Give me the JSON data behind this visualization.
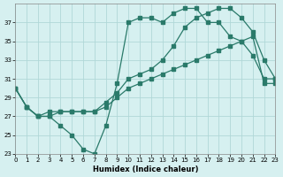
{
  "xlabel": "Humidex (Indice chaleur)",
  "ylabel": "",
  "background_color": "#d6f0f0",
  "grid_color": "#b0d8d8",
  "line_color": "#2a7a6a",
  "xlim": [
    0,
    23
  ],
  "ylim": [
    23,
    39
  ],
  "xticks": [
    0,
    1,
    2,
    3,
    4,
    5,
    6,
    7,
    8,
    9,
    10,
    11,
    12,
    13,
    14,
    15,
    16,
    17,
    18,
    19,
    20,
    21,
    22,
    23
  ],
  "yticks": [
    23,
    25,
    27,
    29,
    31,
    33,
    35,
    37
  ],
  "line1_x": [
    0,
    1,
    2,
    3,
    4,
    5,
    6,
    7,
    8,
    9,
    10,
    11,
    12,
    13,
    14,
    15,
    16,
    17,
    18,
    19,
    20,
    21,
    22,
    23
  ],
  "line1_y": [
    30,
    28,
    27,
    27,
    26,
    25,
    23.5,
    23,
    26,
    30.5,
    37,
    37.5,
    37.5,
    37,
    38,
    38.5,
    38.5,
    37,
    37,
    35.5,
    35,
    33.5,
    31,
    31
  ],
  "line2_x": [
    0,
    1,
    2,
    3,
    4,
    5,
    6,
    7,
    8,
    9,
    10,
    11,
    12,
    13,
    14,
    15,
    16,
    17,
    18,
    19,
    20,
    21,
    22,
    23
  ],
  "line2_y": [
    30,
    28,
    27,
    27.5,
    27.5,
    27.5,
    27.5,
    27.5,
    28,
    29,
    30,
    30.5,
    31,
    31.5,
    32,
    32.5,
    33,
    33.5,
    34,
    34.5,
    35,
    35.5,
    30.5,
    30.5
  ],
  "line3_x": [
    0,
    1,
    2,
    3,
    4,
    5,
    6,
    7,
    8,
    9,
    10,
    11,
    12,
    13,
    14,
    15,
    16,
    17,
    18,
    19,
    20,
    21,
    22,
    23
  ],
  "line3_y": [
    30,
    28,
    27,
    27,
    27.5,
    27.5,
    27.5,
    27.5,
    28.5,
    29.5,
    31,
    31.5,
    32,
    33,
    34.5,
    36.5,
    37.5,
    38,
    38.5,
    38.5,
    37.5,
    36,
    33,
    31
  ]
}
